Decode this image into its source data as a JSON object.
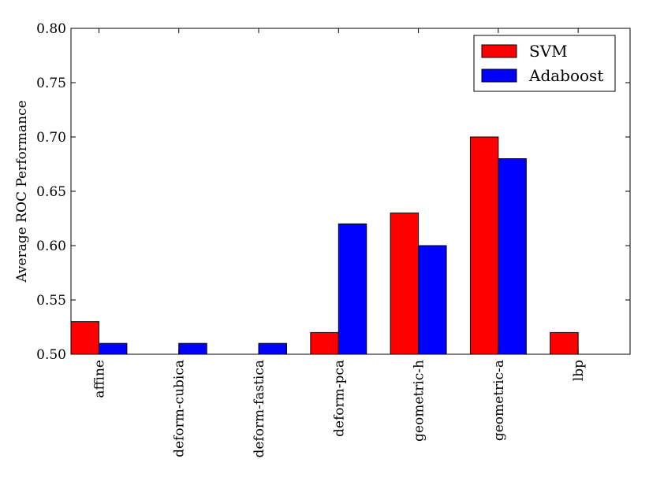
{
  "chart_data": {
    "type": "bar",
    "title": "",
    "xlabel": "",
    "ylabel": "Average ROC Performance",
    "ylim": [
      0.5,
      0.8
    ],
    "yticks": [
      0.5,
      0.55,
      0.6,
      0.65,
      0.7,
      0.75,
      0.8
    ],
    "ytick_labels": [
      "0.50",
      "0.55",
      "0.60",
      "0.65",
      "0.70",
      "0.75",
      "0.80"
    ],
    "categories": [
      "affine",
      "deform-cubica",
      "deform-fastica",
      "deform-pca",
      "geometric-h",
      "geometric-a",
      "lbp"
    ],
    "series": [
      {
        "name": "SVM",
        "color": "#ff0000",
        "values": [
          0.53,
          0.5,
          0.5,
          0.52,
          0.63,
          0.7,
          0.52
        ]
      },
      {
        "name": "Adaboost",
        "color": "#0000ff",
        "values": [
          0.51,
          0.51,
          0.51,
          0.62,
          0.6,
          0.68,
          0.5
        ]
      }
    ],
    "grid": false,
    "legend_position": "top-right"
  }
}
